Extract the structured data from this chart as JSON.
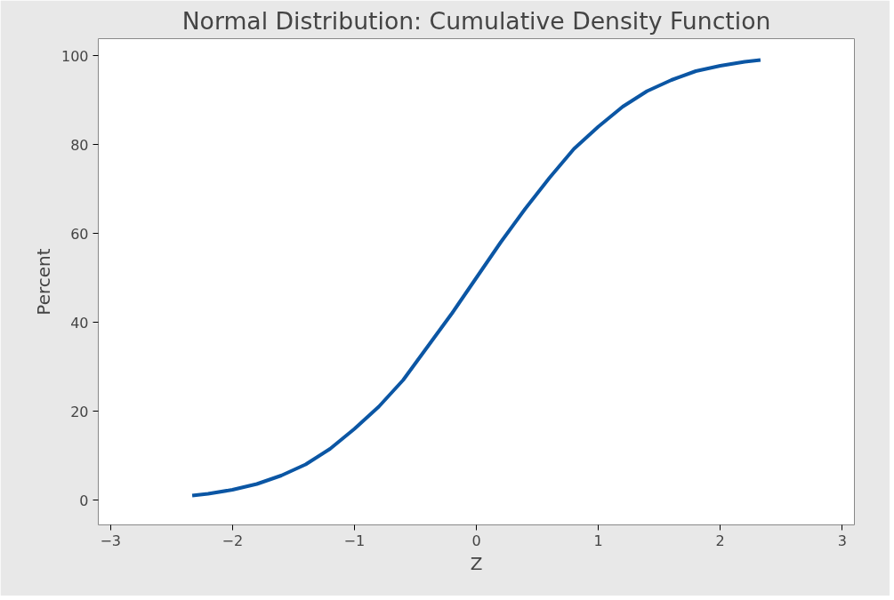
{
  "chart_data": {
    "type": "line",
    "title": "Normal Distribution: Cumulative Density Function",
    "xlabel": "Z",
    "ylabel": "Percent",
    "x": [
      -2.33,
      -2.2,
      -2.0,
      -1.8,
      -1.6,
      -1.4,
      -1.2,
      -1.0,
      -0.8,
      -0.6,
      -0.4,
      -0.2,
      0.0,
      0.2,
      0.4,
      0.6,
      0.8,
      1.0,
      1.2,
      1.4,
      1.6,
      1.8,
      2.0,
      2.2,
      2.33
    ],
    "series": [
      {
        "color": "#0b56a4",
        "values": [
          1,
          1.4,
          2.3,
          3.6,
          5.5,
          8,
          11.5,
          16,
          21,
          27,
          34.5,
          42,
          50,
          58,
          65.5,
          72.5,
          79,
          84,
          88.5,
          92,
          94.5,
          96.5,
          97.7,
          98.6,
          99
        ]
      }
    ],
    "xlim": [
      -3.1,
      3.1
    ],
    "ylim": [
      -5.6,
      103.8
    ],
    "xticks": [
      -3,
      -2,
      -1,
      0,
      1,
      2,
      3
    ],
    "yticks": [
      0,
      20,
      40,
      60,
      80,
      100
    ],
    "grid": false,
    "marker": "none",
    "line_style": "solid"
  }
}
